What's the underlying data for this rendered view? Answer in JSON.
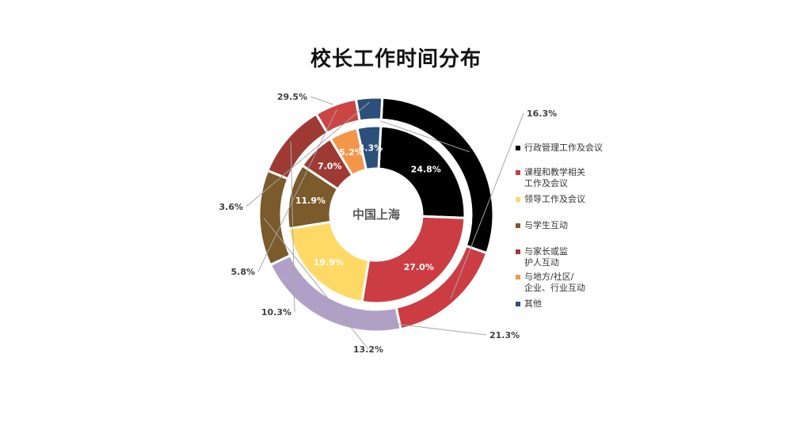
{
  "chart_data": {
    "type": "pie",
    "title": "校长工作时间分布",
    "center_label": "中国上海",
    "categories": [
      "行政管理工作及会议",
      "课程和教学相关\n工作及会议",
      "领导工作及会议",
      "与学生互动",
      "与家长或监\n护人互动",
      "与地方/社区/\n企业、行业互动",
      "其他"
    ],
    "colors": [
      "#000000",
      "#cc3d43",
      "#ffd966",
      "#7b5a2b",
      "#9e3a33",
      "#f4964a",
      "#2c4f7c"
    ],
    "series": [
      {
        "ring": "inner",
        "values": [
          24.8,
          27.0,
          19.9,
          11.9,
          7.0,
          5.2,
          4.3
        ],
        "labels": [
          "24.8%",
          "27.0%",
          "19.9%",
          "11.9%",
          "7.0%",
          "5.2%",
          "4.3%"
        ]
      },
      {
        "ring": "outer",
        "values": [
          29.5,
          16.3,
          21.3,
          13.2,
          10.3,
          5.8,
          3.6
        ],
        "labels": [
          "29.5%",
          "16.3%",
          "21.3%",
          "13.2%",
          "10.3%",
          "5.8%",
          "3.6%"
        ],
        "colors": [
          "#000000",
          "#cc3d43",
          "#b0a0c8",
          "#7b5a2b",
          "#9e3a33",
          "#cc4545",
          "#2c4f7c"
        ]
      }
    ],
    "legend_position": "right"
  }
}
